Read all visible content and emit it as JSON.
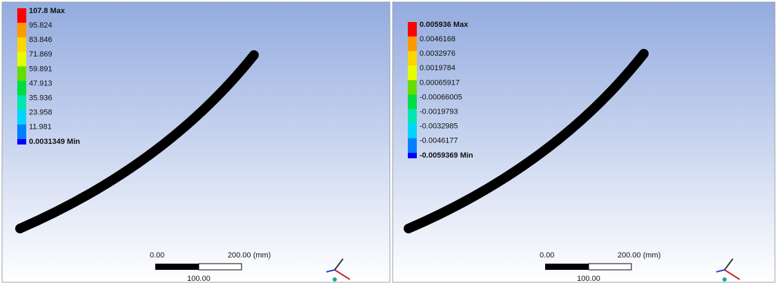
{
  "legend_colors": [
    "#ff0000",
    "#ff9900",
    "#ffd400",
    "#e6ff00",
    "#66dd00",
    "#00dd44",
    "#00e6b0",
    "#00d4ff",
    "#0080ff",
    "#0000ff"
  ],
  "panels": [
    {
      "legend": {
        "labels": [
          "107.8 Max",
          "95.824",
          "83.846",
          "71.869",
          "59.891",
          "47.913",
          "35.936",
          "23.958",
          "11.981",
          "0.0031349 Min"
        ]
      },
      "scale": {
        "start": "0.00",
        "end": "200.00 (mm)",
        "mid": "100.00"
      }
    },
    {
      "legend": {
        "labels": [
          "0.005936 Max",
          "0.0046168",
          "0.0032976",
          "0.0019784",
          "0.00065917",
          "-0.00066005",
          "-0.0019793",
          "-0.0032985",
          "-0.0046177",
          "-0.0059369 Min"
        ]
      },
      "scale": {
        "start": "0.00",
        "end": "200.00 (mm)",
        "mid": "100.00"
      }
    }
  ]
}
